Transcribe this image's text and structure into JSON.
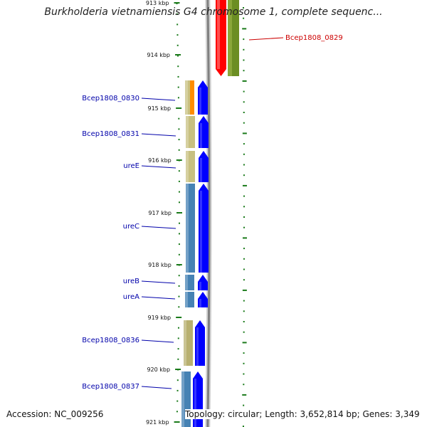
{
  "title": "Burkholderia vietnamiensis G4 chromosome 1, complete sequenc...",
  "accession": "Accession: NC_009256",
  "topology": "Topology: circular; Length: 3,652,814 bp; Genes: 3,349",
  "colors": {
    "tick": "#1a7a1a",
    "backbone": "#808080",
    "reverse_label": "#cc0000",
    "forward_label": "#0000aa",
    "forward_arrow": "#0000ff",
    "reverse_arrow": "#ff0000"
  },
  "ticks": [
    "913 kbp",
    "914 kbp",
    "915 kbp",
    "916 kbp",
    "917 kbp",
    "918 kbp",
    "919 kbp",
    "920 kbp",
    "921 kbp"
  ],
  "genes": [
    {
      "name": "Bcep1808_0829",
      "strand": "reverse",
      "cog_color": "#6b8e23"
    },
    {
      "name": "Bcep1808_0830",
      "strand": "forward",
      "cog_color": "#c8c080"
    },
    {
      "name": "Bcep1808_0831",
      "strand": "forward",
      "cog_color": "#c8c080"
    },
    {
      "name": "ureE",
      "strand": "forward",
      "cog_color": "#c8c080"
    },
    {
      "name": "ureC",
      "strand": "forward",
      "cog_color": "#4682b4"
    },
    {
      "name": "ureB",
      "strand": "forward",
      "cog_color": "#4682b4"
    },
    {
      "name": "ureA",
      "strand": "forward",
      "cog_color": "#4682b4"
    },
    {
      "name": "Bcep1808_0836",
      "strand": "forward",
      "cog_color": "#b8b070"
    },
    {
      "name": "Bcep1808_0837",
      "strand": "forward",
      "cog_color": "#4682b4"
    }
  ]
}
